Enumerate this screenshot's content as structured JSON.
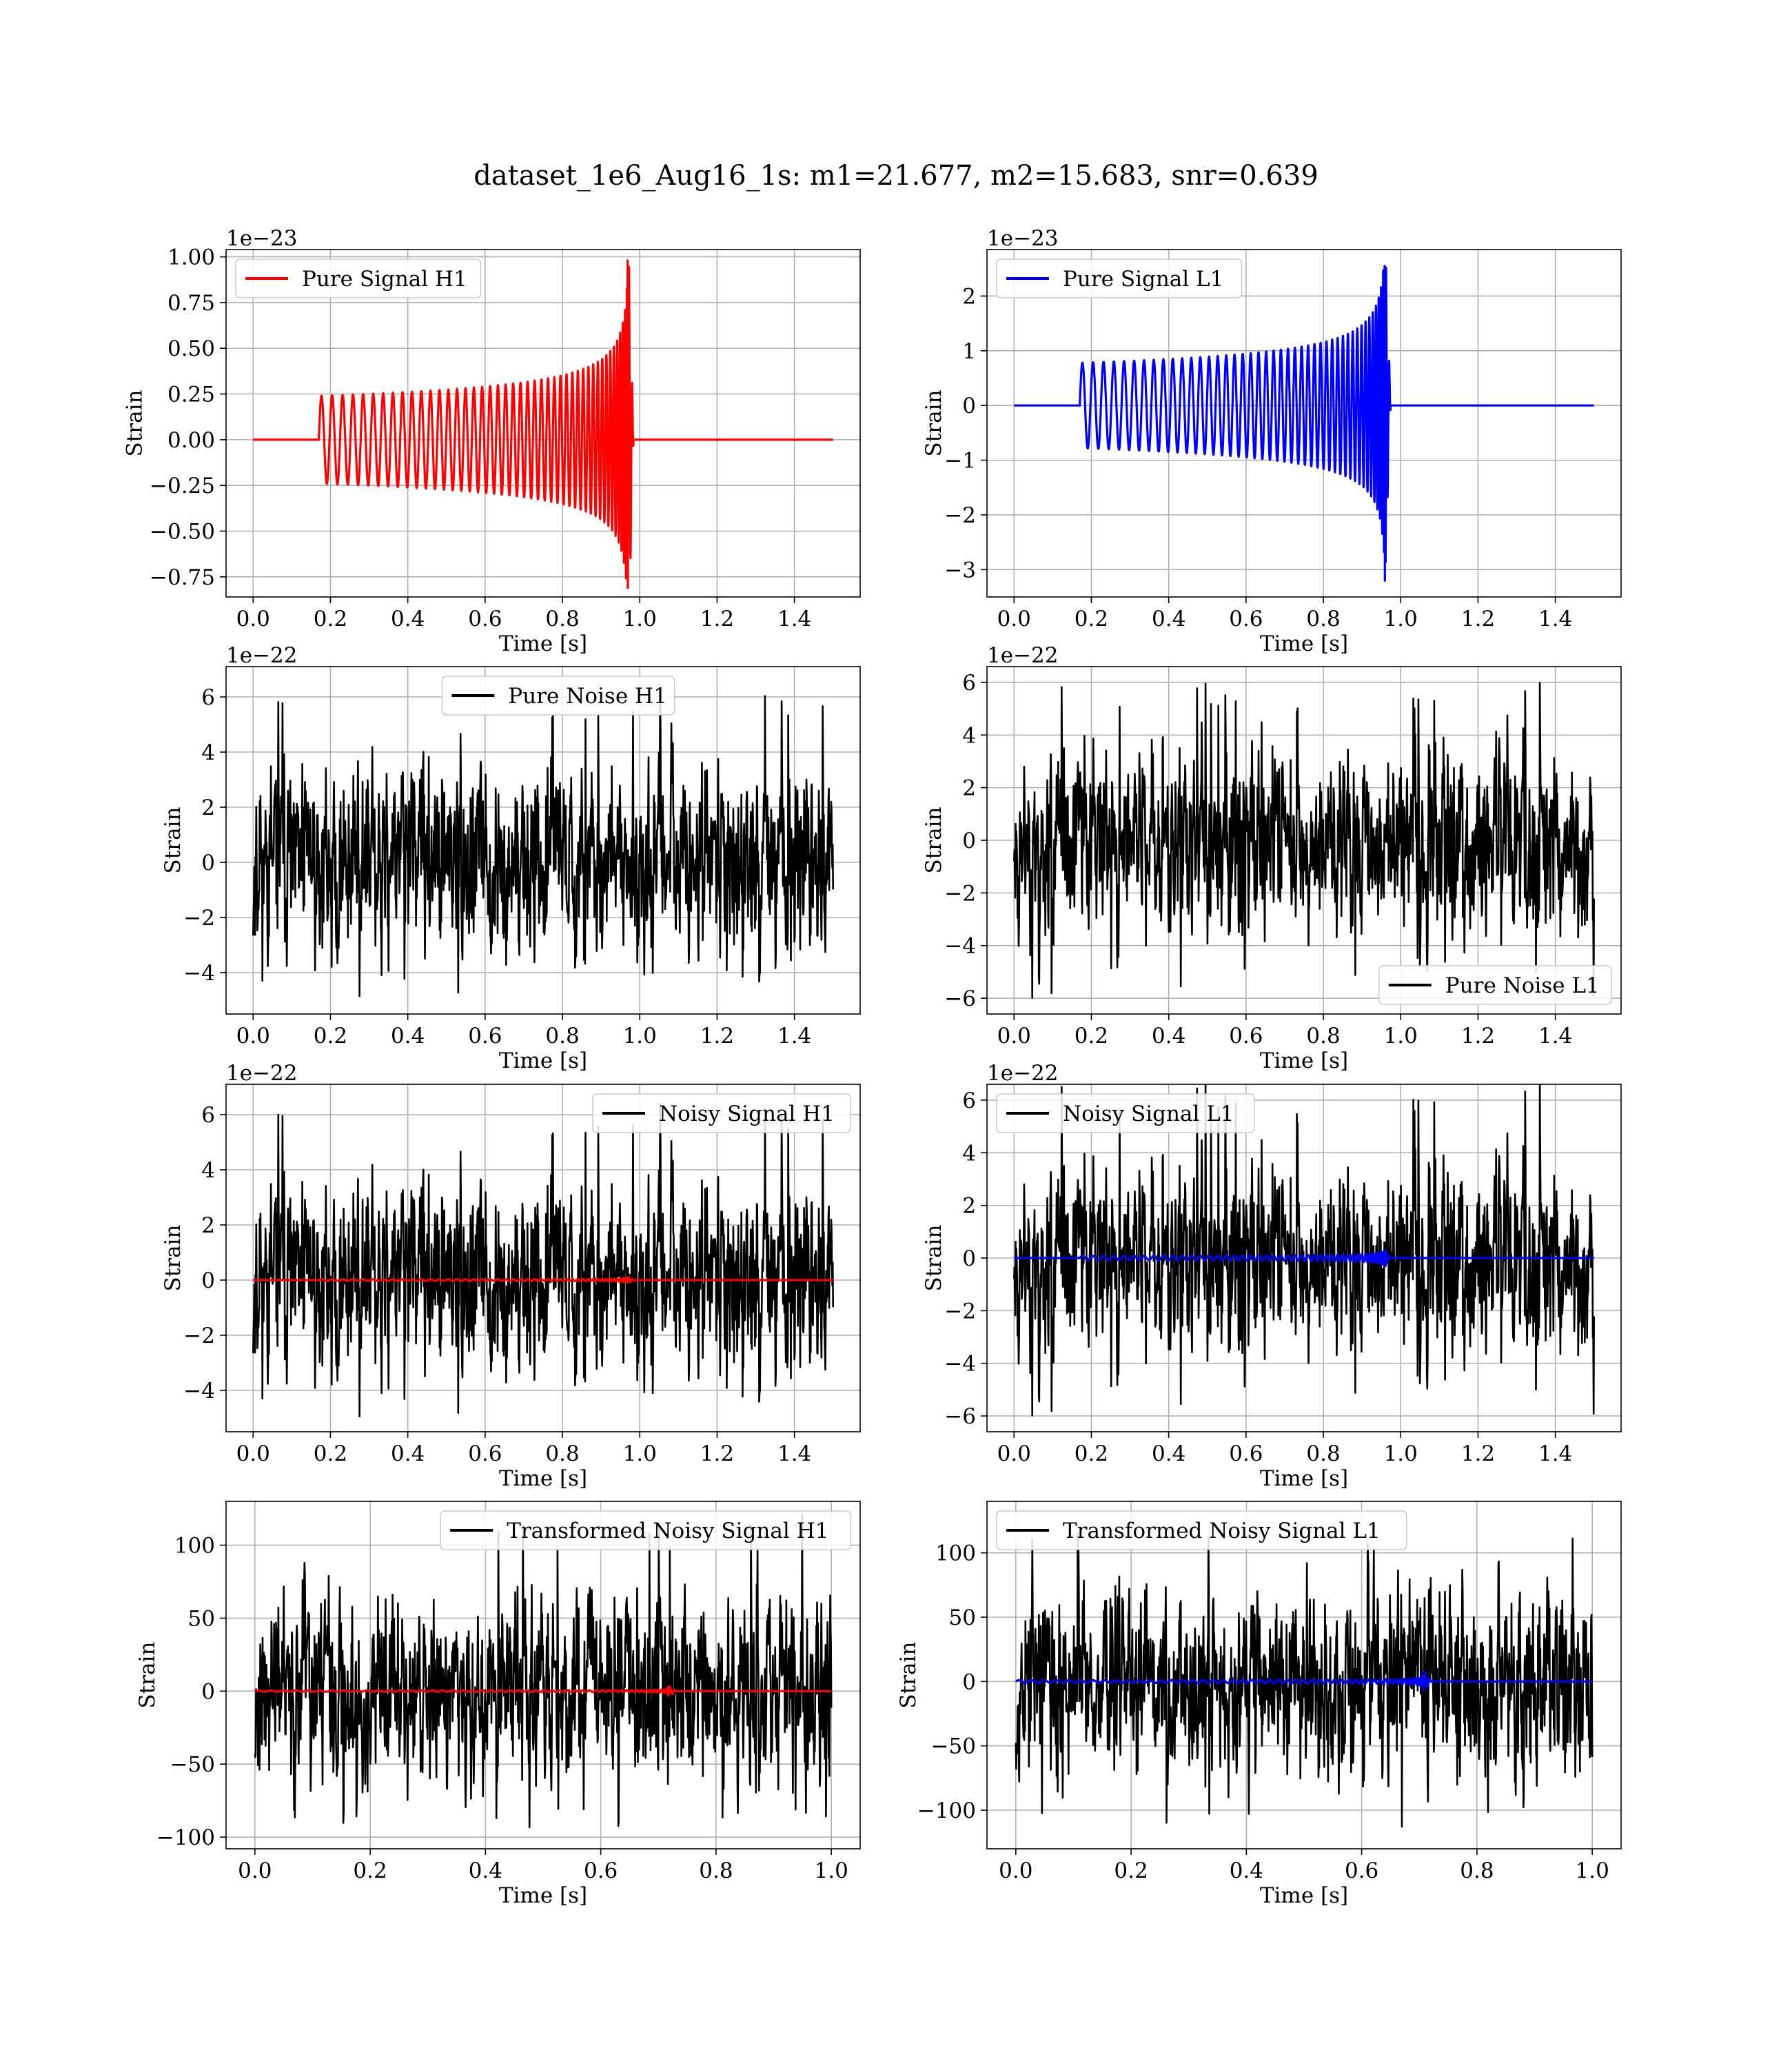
{
  "figure": {
    "title": "dataset_1e6_Aug16_1s: m1=21.677, m2=15.683, snr=0.639"
  },
  "chart_data": [
    {
      "type": "line",
      "id": "pure-signal-h1",
      "xlabel": "Time [s]",
      "ylabel": "Strain",
      "offset_text": "1e−23",
      "xlim": [
        -0.07,
        1.57
      ],
      "ylim": [
        -0.86,
        1.04
      ],
      "xticks": [
        0.0,
        0.2,
        0.4,
        0.6,
        0.8,
        1.0,
        1.2,
        1.4
      ],
      "xtick_labels": [
        "0.0",
        "0.2",
        "0.4",
        "0.6",
        "0.8",
        "1.0",
        "1.2",
        "1.4"
      ],
      "yticks": [
        -0.75,
        -0.5,
        -0.25,
        0.0,
        0.25,
        0.5,
        0.75,
        1.0
      ],
      "ytick_labels": [
        "−0.75",
        "−0.50",
        "−0.25",
        "0.00",
        "0.25",
        "0.50",
        "0.75",
        "1.00"
      ],
      "grid": true,
      "legend_position": "top-left",
      "series": [
        {
          "name": "Pure Signal H1",
          "color": "#ff0000",
          "kind": "chirp",
          "in_legend": true,
          "x_range": [
            0.0,
            1.5
          ],
          "onset": 0.17,
          "merger": 0.972,
          "peak": 0.98,
          "trough": -0.81,
          "base_amp": 0.24,
          "base_freq": 36
        }
      ]
    },
    {
      "type": "line",
      "id": "pure-signal-l1",
      "xlabel": "Time [s]",
      "ylabel": "Strain",
      "offset_text": "1e−23",
      "xlim": [
        -0.07,
        1.57
      ],
      "ylim": [
        -3.5,
        2.85
      ],
      "xticks": [
        0.0,
        0.2,
        0.4,
        0.6,
        0.8,
        1.0,
        1.2,
        1.4
      ],
      "xtick_labels": [
        "0.0",
        "0.2",
        "0.4",
        "0.6",
        "0.8",
        "1.0",
        "1.2",
        "1.4"
      ],
      "yticks": [
        -3,
        -2,
        -1,
        0,
        1,
        2
      ],
      "ytick_labels": [
        "−3",
        "−2",
        "−1",
        "0",
        "1",
        "2"
      ],
      "grid": true,
      "legend_position": "top-left",
      "series": [
        {
          "name": "Pure Signal L1",
          "color": "#0000ff",
          "kind": "chirp",
          "in_legend": true,
          "x_range": [
            0.0,
            1.5
          ],
          "onset": 0.17,
          "merger": 0.962,
          "peak": 2.55,
          "trough": -3.2,
          "base_amp": 0.78,
          "base_freq": 36
        }
      ]
    },
    {
      "type": "line",
      "id": "pure-noise-h1",
      "xlabel": "Time [s]",
      "ylabel": "Strain",
      "offset_text": "1e−22",
      "xlim": [
        -0.07,
        1.57
      ],
      "ylim": [
        -5.5,
        7.1
      ],
      "xticks": [
        0.0,
        0.2,
        0.4,
        0.6,
        0.8,
        1.0,
        1.2,
        1.4
      ],
      "xtick_labels": [
        "0.0",
        "0.2",
        "0.4",
        "0.6",
        "0.8",
        "1.0",
        "1.2",
        "1.4"
      ],
      "yticks": [
        -4,
        -2,
        0,
        2,
        4,
        6
      ],
      "ytick_labels": [
        "−4",
        "−2",
        "0",
        "2",
        "4",
        "6"
      ],
      "grid": true,
      "legend_position": "upper-center",
      "series": [
        {
          "name": "Pure Noise H1",
          "color": "#000000",
          "kind": "noise",
          "in_legend": true,
          "x_range": [
            0.0,
            1.5
          ],
          "sigma": 1.45,
          "max": 6.3,
          "min": -5.0,
          "seed": 11
        }
      ]
    },
    {
      "type": "line",
      "id": "pure-noise-l1",
      "xlabel": "Time [s]",
      "ylabel": "Strain",
      "offset_text": "1e−22",
      "xlim": [
        -0.07,
        1.57
      ],
      "ylim": [
        -6.6,
        6.6
      ],
      "xticks": [
        0.0,
        0.2,
        0.4,
        0.6,
        0.8,
        1.0,
        1.2,
        1.4
      ],
      "xtick_labels": [
        "0.0",
        "0.2",
        "0.4",
        "0.6",
        "0.8",
        "1.0",
        "1.2",
        "1.4"
      ],
      "yticks": [
        -6,
        -4,
        -2,
        0,
        2,
        4,
        6
      ],
      "ytick_labels": [
        "−6",
        "−4",
        "−2",
        "0",
        "2",
        "4",
        "6"
      ],
      "grid": true,
      "legend_position": "lower-right",
      "series": [
        {
          "name": "Pure Noise L1",
          "color": "#000000",
          "kind": "noise",
          "in_legend": true,
          "x_range": [
            0.0,
            1.5
          ],
          "sigma": 1.5,
          "max": 6.0,
          "min": -6.0,
          "seed": 23
        }
      ]
    },
    {
      "type": "line",
      "id": "noisy-signal-h1",
      "xlabel": "Time [s]",
      "ylabel": "Strain",
      "offset_text": "1e−22",
      "xlim": [
        -0.07,
        1.57
      ],
      "ylim": [
        -5.5,
        7.1
      ],
      "xticks": [
        0.0,
        0.2,
        0.4,
        0.6,
        0.8,
        1.0,
        1.2,
        1.4
      ],
      "xtick_labels": [
        "0.0",
        "0.2",
        "0.4",
        "0.6",
        "0.8",
        "1.0",
        "1.2",
        "1.4"
      ],
      "yticks": [
        -4,
        -2,
        0,
        2,
        4,
        6
      ],
      "ytick_labels": [
        "−4",
        "−2",
        "0",
        "2",
        "4",
        "6"
      ],
      "grid": true,
      "legend_position": "top-right",
      "series": [
        {
          "name": "Noisy Signal H1",
          "color": "#000000",
          "kind": "noise",
          "in_legend": true,
          "x_range": [
            0.0,
            1.5
          ],
          "sigma": 1.45,
          "max": 6.5,
          "min": -5.1,
          "seed": 11
        },
        {
          "name": "",
          "color": "#ff0000",
          "kind": "chirp",
          "in_legend": false,
          "x_range": [
            0.0,
            1.5
          ],
          "onset": 0.17,
          "merger": 0.972,
          "peak": 0.098,
          "trough": -0.081,
          "base_amp": 0.024,
          "base_freq": 36
        }
      ]
    },
    {
      "type": "line",
      "id": "noisy-signal-l1",
      "xlabel": "Time [s]",
      "ylabel": "Strain",
      "offset_text": "1e−22",
      "xlim": [
        -0.07,
        1.57
      ],
      "ylim": [
        -6.6,
        6.6
      ],
      "xticks": [
        0.0,
        0.2,
        0.4,
        0.6,
        0.8,
        1.0,
        1.2,
        1.4
      ],
      "xtick_labels": [
        "0.0",
        "0.2",
        "0.4",
        "0.6",
        "0.8",
        "1.0",
        "1.2",
        "1.4"
      ],
      "yticks": [
        -6,
        -4,
        -2,
        0,
        2,
        4,
        6
      ],
      "ytick_labels": [
        "−6",
        "−4",
        "−2",
        "0",
        "2",
        "4",
        "6"
      ],
      "grid": true,
      "legend_position": "top-left",
      "series": [
        {
          "name": "Noisy Signal L1",
          "color": "#000000",
          "kind": "noise",
          "in_legend": true,
          "x_range": [
            0.0,
            1.5
          ],
          "sigma": 1.5,
          "max": 6.7,
          "min": -6.0,
          "seed": 23
        },
        {
          "name": "",
          "color": "#0000ff",
          "kind": "chirp",
          "in_legend": false,
          "x_range": [
            0.0,
            1.5
          ],
          "onset": 0.17,
          "merger": 0.962,
          "peak": 0.255,
          "trough": -0.32,
          "base_amp": 0.078,
          "base_freq": 36
        }
      ]
    },
    {
      "type": "line",
      "id": "transformed-noisy-signal-h1",
      "xlabel": "Time [s]",
      "ylabel": "Strain",
      "offset_text": "",
      "xlim": [
        -0.05,
        1.05
      ],
      "ylim": [
        -108,
        130
      ],
      "xticks": [
        0.0,
        0.2,
        0.4,
        0.6,
        0.8,
        1.0
      ],
      "xtick_labels": [
        "0.0",
        "0.2",
        "0.4",
        "0.6",
        "0.8",
        "1.0"
      ],
      "yticks": [
        -100,
        -50,
        0,
        50,
        100
      ],
      "ytick_labels": [
        "−100",
        "−50",
        "0",
        "50",
        "100"
      ],
      "grid": true,
      "legend_position": "top-right",
      "series": [
        {
          "name": "Transformed Noisy Signal H1",
          "color": "#000000",
          "kind": "noise",
          "in_legend": true,
          "x_range": [
            0.0,
            1.0
          ],
          "sigma": 27,
          "max": 123,
          "min": -95,
          "seed": 37
        },
        {
          "name": "",
          "color": "#ff0000",
          "kind": "chirp",
          "in_legend": false,
          "x_range": [
            0.0,
            1.0
          ],
          "onset": 0.0,
          "merger": 0.72,
          "peak": 3.0,
          "trough": -3.0,
          "base_amp": 0.4,
          "base_freq": 45
        }
      ]
    },
    {
      "type": "line",
      "id": "transformed-noisy-signal-l1",
      "xlabel": "Time [s]",
      "ylabel": "Strain",
      "offset_text": "",
      "xlim": [
        -0.05,
        1.05
      ],
      "ylim": [
        -130,
        140
      ],
      "xticks": [
        0.0,
        0.2,
        0.4,
        0.6,
        0.8,
        1.0
      ],
      "xtick_labels": [
        "0.0",
        "0.2",
        "0.4",
        "0.6",
        "0.8",
        "1.0"
      ],
      "yticks": [
        -100,
        -50,
        0,
        50,
        100
      ],
      "ytick_labels": [
        "−100",
        "−50",
        "0",
        "50",
        "100"
      ],
      "grid": true,
      "legend_position": "top-left",
      "series": [
        {
          "name": "Transformed Noisy Signal L1",
          "color": "#000000",
          "kind": "noise",
          "in_legend": true,
          "x_range": [
            0.0,
            1.0
          ],
          "sigma": 30,
          "max": 126,
          "min": -118,
          "seed": 53
        },
        {
          "name": "",
          "color": "#0000ff",
          "kind": "chirp",
          "in_legend": false,
          "x_range": [
            0.0,
            1.0
          ],
          "onset": 0.0,
          "merger": 0.71,
          "peak": 7.0,
          "trough": -7.0,
          "base_amp": 1.0,
          "base_freq": 45
        }
      ]
    }
  ]
}
